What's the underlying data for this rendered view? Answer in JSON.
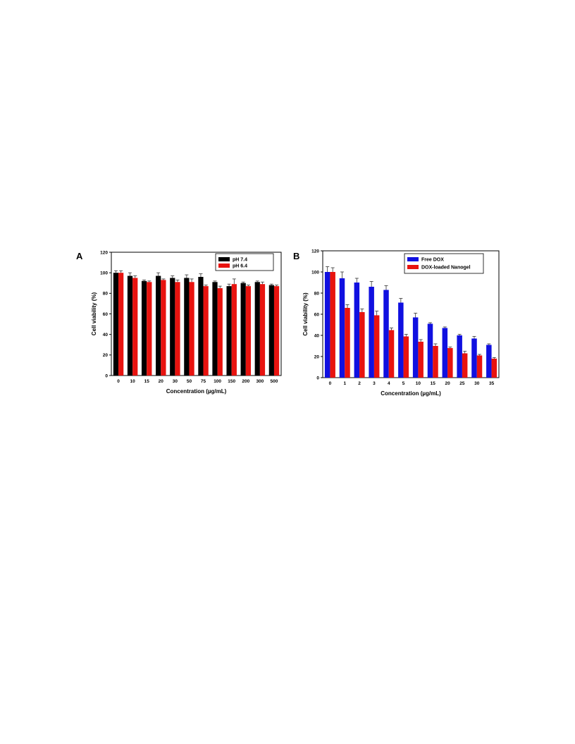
{
  "chart_data": [
    {
      "panel_label": "A",
      "type": "bar",
      "xlabel": "Concentration (µg/mL)",
      "ylabel": "Cell viability (%)",
      "ylim": [
        0,
        120
      ],
      "yticks": [
        0,
        20,
        40,
        60,
        80,
        100,
        120
      ],
      "categories": [
        "0",
        "10",
        "15",
        "20",
        "30",
        "50",
        "75",
        "100",
        "150",
        "200",
        "300",
        "500"
      ],
      "grid": false,
      "legend_position": "top-right",
      "series": [
        {
          "name": "pH 7.4",
          "color": "#000000",
          "values": [
            100,
            97,
            92,
            97,
            95,
            95,
            96,
            91,
            87,
            90,
            91,
            88
          ],
          "errors": [
            2,
            3,
            1,
            3,
            2,
            3,
            3,
            1,
            2,
            1,
            1,
            1
          ]
        },
        {
          "name": "pH 6.4",
          "color": "#e8130f",
          "values": [
            100,
            95,
            91,
            93,
            91,
            91,
            87,
            85,
            89,
            87,
            89,
            87
          ],
          "errors": [
            2,
            2,
            1,
            1,
            2,
            3,
            1,
            2,
            5,
            1,
            2,
            1
          ]
        }
      ]
    },
    {
      "panel_label": "B",
      "type": "bar",
      "xlabel": "Concentration (µg/mL)",
      "ylabel": "Cell viability (%)",
      "ylim": [
        0,
        120
      ],
      "yticks": [
        0,
        20,
        40,
        60,
        80,
        100,
        120
      ],
      "categories": [
        "0",
        "1",
        "2",
        "3",
        "4",
        "5",
        "10",
        "15",
        "20",
        "25",
        "30",
        "35"
      ],
      "grid": false,
      "legend_position": "top-right",
      "series": [
        {
          "name": "Free DOX",
          "color": "#1010e0",
          "values": [
            100,
            94,
            90,
            86,
            83,
            71,
            57,
            51,
            47,
            40,
            37,
            31
          ],
          "errors": [
            5,
            6,
            4,
            5,
            4,
            4,
            4,
            1,
            1,
            1,
            2,
            1
          ]
        },
        {
          "name": "DOX-loaded Nanogel",
          "color": "#e8130f",
          "values": [
            100,
            66,
            62,
            59,
            45,
            39,
            34,
            30,
            28,
            23,
            21,
            18
          ],
          "errors": [
            4,
            3,
            3,
            4,
            2,
            2,
            2,
            2,
            1,
            2,
            1,
            1
          ]
        }
      ]
    }
  ]
}
